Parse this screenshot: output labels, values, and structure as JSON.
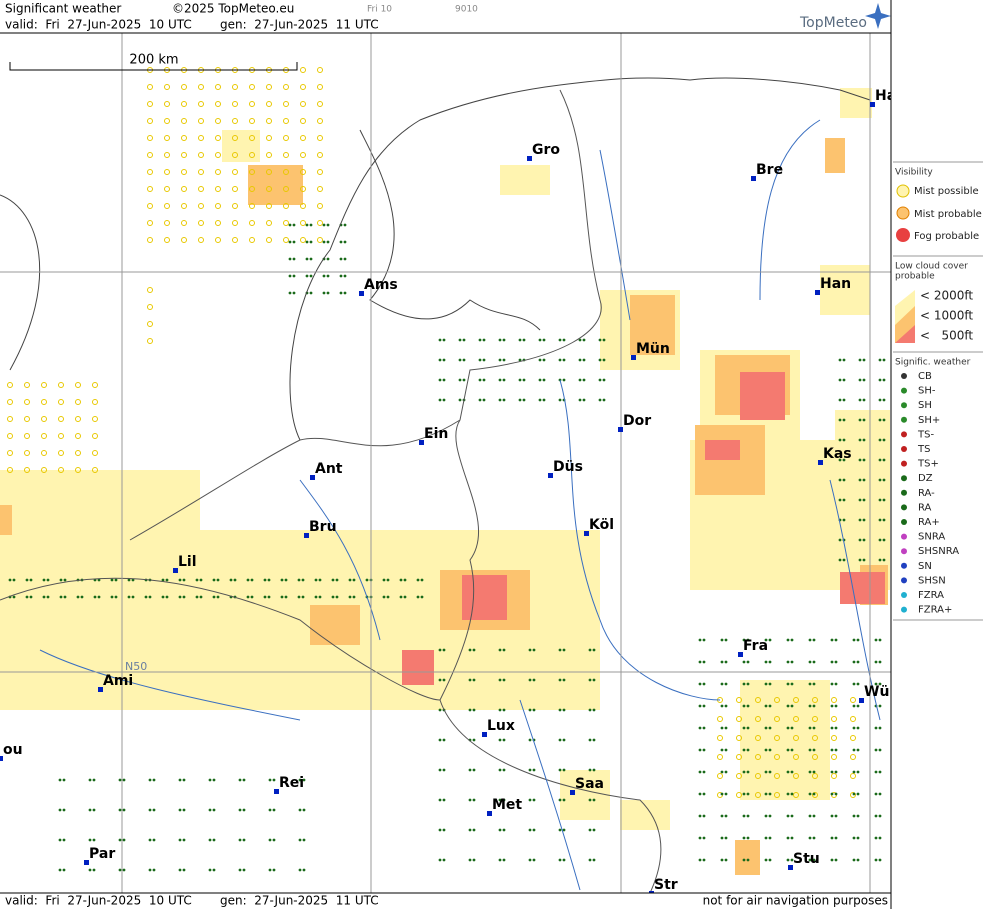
{
  "header": {
    "title": "Significant weather",
    "copyright": "©2025 TopMeteo.eu",
    "frame": "Fri 10",
    "code": "9010",
    "valid": "valid:  Fri  27-Jun-2025  10 UTC",
    "gen": "gen:  27-Jun-2025  11 UTC",
    "logo": "TopMeteo"
  },
  "map": {
    "scale": "200 km",
    "grid_label": "N50",
    "cities": [
      "Ha",
      "Gro",
      "Bre",
      "Ams",
      "Han",
      "Mün",
      "Dor",
      "Ein",
      "Kas",
      "Ant",
      "Düs",
      "Bru",
      "Köl",
      "Lil",
      "Fra",
      "Ami",
      "Wü",
      "Lux",
      "ou",
      "Rei",
      "Saa",
      "Met",
      "Par",
      "Stu",
      "Str"
    ]
  },
  "legend": {
    "visibility": {
      "title": "Visibility",
      "items": [
        "Mist possible",
        "Mist probable",
        "Fog probable"
      ]
    },
    "low_cloud": {
      "title": [
        "Low cloud cover",
        "probable"
      ],
      "items": [
        "< 2000ft",
        "< 1000ft",
        "<   500ft"
      ]
    },
    "sigwx": {
      "title": "Signific. weather",
      "items": [
        "CB",
        "SH-",
        "SH",
        "SH+",
        "TS-",
        "TS",
        "TS+",
        "DZ",
        "RA-",
        "RA",
        "RA+",
        "SNRA",
        "SHSNRA",
        "SN",
        "SHSN",
        "FZRA",
        "FZRA+"
      ]
    }
  },
  "footer": {
    "valid": "valid:  Fri  27-Jun-2025  10 UTC",
    "gen": "gen:  27-Jun-2025  11 UTC",
    "note": "not for air navigation purposes"
  }
}
